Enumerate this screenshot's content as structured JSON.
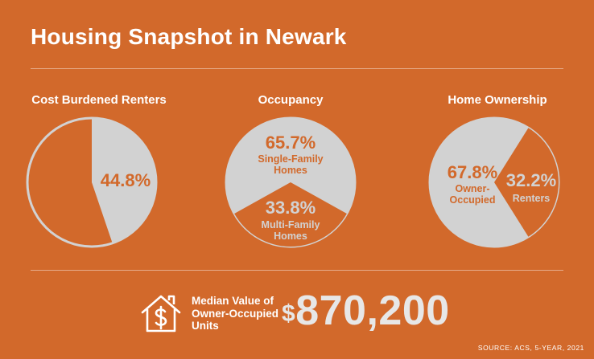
{
  "title": "Housing Snapshot in Newark",
  "chart_data": [
    {
      "type": "pie",
      "title": "Cost Burdened Renters",
      "slices": [
        {
          "value": 44.8,
          "label": "44.8%",
          "color": "#D2D2D2"
        },
        {
          "value": 55.2,
          "label": "",
          "color": "#D2692B"
        }
      ]
    },
    {
      "type": "pie",
      "title": "Occupancy",
      "slices": [
        {
          "value": 65.7,
          "label": "65.7%",
          "name": "Single-Family Homes",
          "color": "#D2D2D2"
        },
        {
          "value": 33.8,
          "label": "33.8%",
          "name": "Multi-Family Homes",
          "color": "#D2692B"
        }
      ]
    },
    {
      "type": "pie",
      "title": "Home Ownership",
      "slices": [
        {
          "value": 67.8,
          "label": "67.8%",
          "name": "Owner-Occupied",
          "color": "#D2D2D2"
        },
        {
          "value": 32.2,
          "label": "32.2%",
          "name": "Renters",
          "color": "#D2692B"
        }
      ]
    }
  ],
  "median": {
    "label": "Median Value of Owner-Occupied Units",
    "value": "870,200",
    "currency": "$"
  },
  "source": "SOURCE: ACS, 5-YEAR, 2021",
  "colors": {
    "background": "#D2692B",
    "pie_fill": "#D2D2D2",
    "label_orange": "#D2692B",
    "value_gray": "#E7E7E7"
  }
}
